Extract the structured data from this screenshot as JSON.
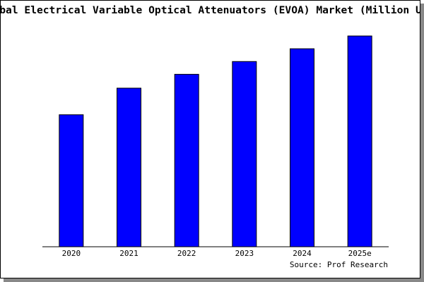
{
  "chart_data": {
    "type": "bar",
    "title": "Global Electrical Variable Optical Attenuators (EVOA) Market (Million USD)",
    "source": "Source: Prof Research",
    "categories": [
      "2020",
      "2021",
      "2022",
      "2023",
      "2024",
      "2025e"
    ],
    "values": [
      62,
      74.5,
      81,
      87,
      93,
      99
    ],
    "color": "#0000ff",
    "ylim": [
      0,
      100
    ]
  }
}
